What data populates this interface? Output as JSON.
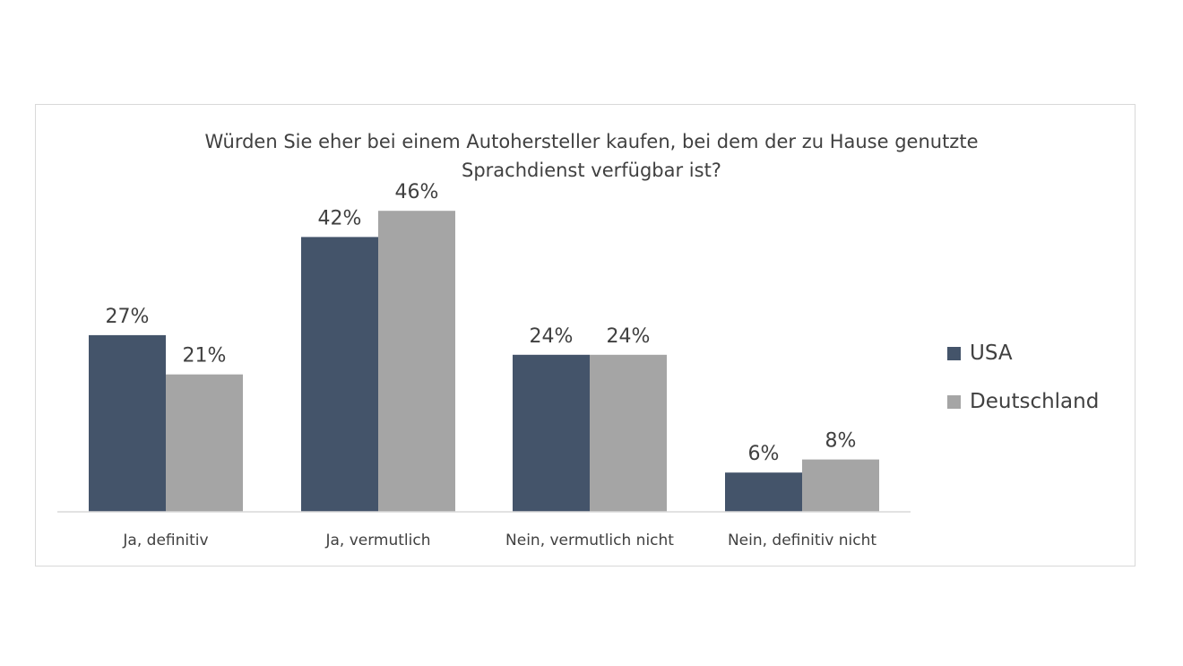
{
  "chart_data": {
    "type": "bar",
    "title_lines": [
      "Würden Sie eher bei einem Autohersteller kaufen, bei dem der zu Hause genutzte",
      "Sprachdienst verfügbar ist?"
    ],
    "categories": [
      "Ja, definitiv",
      "Ja, vermutlich",
      "Nein, vermutlich nicht",
      "Nein, definitiv nicht"
    ],
    "series": [
      {
        "name": "USA",
        "color": "#44546a",
        "values": [
          27,
          42,
          24,
          6
        ],
        "labels": [
          "27%",
          "42%",
          "24%",
          "6%"
        ]
      },
      {
        "name": "Deutschland",
        "color": "#a5a5a5",
        "values": [
          21,
          46,
          24,
          8
        ],
        "labels": [
          "21%",
          "46%",
          "24%",
          "8%"
        ]
      }
    ],
    "value_unit": "%",
    "ylim": [
      0,
      50
    ],
    "grid": false,
    "legend_position": "right"
  }
}
